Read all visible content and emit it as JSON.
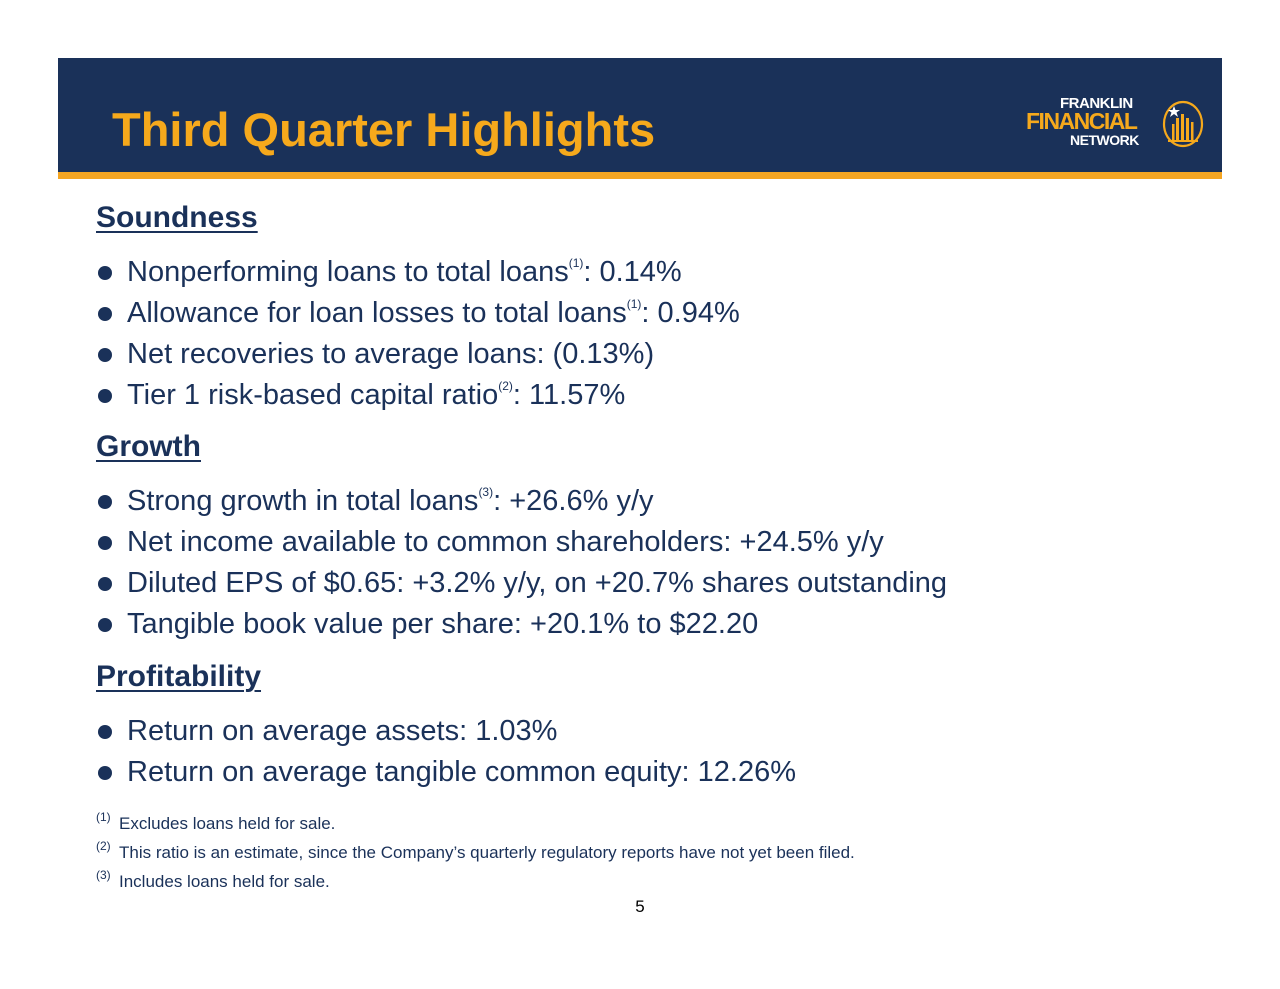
{
  "header": {
    "title": "Third Quarter Highlights",
    "logo": {
      "line1": "FRANKLIN",
      "line2": "FINANCIAL",
      "line3": "NETWORK",
      "icon": "sun-building-emblem-icon"
    }
  },
  "sections": [
    {
      "heading": "Soundness",
      "bullets": [
        {
          "text": "Nonperforming loans to total loans",
          "sup": "(1)",
          "after": ": 0.14%"
        },
        {
          "text": "Allowance for loan losses to total loans",
          "sup": "(1)",
          "after": ": 0.94%"
        },
        {
          "text": "Net recoveries to average loans: (0.13%)",
          "sup": "",
          "after": ""
        },
        {
          "text": "Tier 1 risk-based capital ratio",
          "sup": "(2)",
          "after": ": 11.57%"
        }
      ]
    },
    {
      "heading": "Growth",
      "bullets": [
        {
          "text": "Strong growth in total loans",
          "sup": "(3)",
          "after": ":  +26.6% y/y"
        },
        {
          "text": "Net income available to common shareholders: +24.5% y/y",
          "sup": "",
          "after": ""
        },
        {
          "text": "Diluted EPS of $0.65: +3.2% y/y, on +20.7% shares outstanding",
          "sup": "",
          "after": ""
        },
        {
          "text": "Tangible book value per share: +20.1% to $22.20",
          "sup": "",
          "after": ""
        }
      ]
    },
    {
      "heading": "Profitability",
      "bullets": [
        {
          "text": "Return on average assets:  1.03%",
          "sup": "",
          "after": ""
        },
        {
          "text": "Return on average tangible common equity:  12.26%",
          "sup": "",
          "after": ""
        }
      ]
    }
  ],
  "footnotes": [
    {
      "marker": "(1)",
      "text": "Excludes loans held for sale."
    },
    {
      "marker": "(2)",
      "text": "This ratio is an estimate, since the Company’s quarterly regulatory reports have not yet been filed."
    },
    {
      "marker": "(3)",
      "text": "Includes loans held for sale."
    }
  ],
  "page_number": "5",
  "colors": {
    "navy": "#1a3159",
    "gold": "#f6a91c",
    "stripe": "#f5a623"
  }
}
